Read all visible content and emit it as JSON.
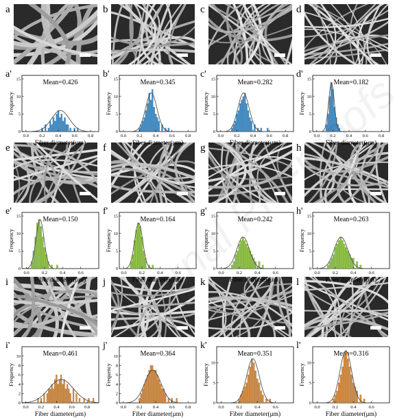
{
  "sem_panel_labels": [
    "a",
    "b",
    "c",
    "d",
    "e",
    "f",
    "g",
    "h",
    "i",
    "j",
    "k",
    "l"
  ],
  "histogram_panel_labels": [
    "a'",
    "b'",
    "c'",
    "d'",
    "e'",
    "f'",
    "g'",
    "h'",
    "i'",
    "j'",
    "k'",
    "l'"
  ],
  "watermark_text": "Journal Pre-proofs",
  "colors": {
    "row1_bars": "#3a8fd0",
    "row2_bars": "#8dc63f",
    "row3_bars": "#d98b3a",
    "fit_curve": "#404040",
    "sem_background": "#2a2a2a",
    "sem_fiber": "#c8c8c8",
    "scale_bar": "#ffffff"
  },
  "chart_data": [
    {
      "panel": "a'",
      "type": "bar",
      "title": "Mean=0.426",
      "xlabel": "Fiber diameter(μm)",
      "ylabel": "Frequency",
      "xlim": [
        -0.05,
        0.9
      ],
      "ylim": [
        0,
        16
      ],
      "xticks": [
        "0.0",
        "0.2",
        "0.4",
        "0.6",
        "0.8"
      ],
      "yticks": [
        "0",
        "5",
        "10",
        "15"
      ],
      "x": [
        0.2,
        0.24,
        0.28,
        0.3,
        0.32,
        0.34,
        0.36,
        0.38,
        0.4,
        0.42,
        0.44,
        0.46,
        0.48,
        0.5,
        0.52,
        0.55,
        0.6,
        0.64
      ],
      "values": [
        1,
        2,
        1,
        3,
        2,
        4,
        3,
        5,
        6,
        4,
        5,
        3,
        4,
        2,
        2,
        1,
        1,
        1
      ],
      "fit": {
        "mean": 0.426,
        "sd": 0.11,
        "peak": 6
      }
    },
    {
      "panel": "b'",
      "type": "bar",
      "title": "Mean=0.345",
      "xlabel": "Fiber diameter(μm)",
      "ylabel": "Frequency",
      "xlim": [
        -0.05,
        0.9
      ],
      "ylim": [
        0,
        16
      ],
      "xticks": [
        "0.0",
        "0.2",
        "0.4",
        "0.6",
        "0.8"
      ],
      "yticks": [
        "0",
        "5",
        "10",
        "15"
      ],
      "x": [
        0.2,
        0.22,
        0.24,
        0.26,
        0.28,
        0.3,
        0.32,
        0.34,
        0.36,
        0.38,
        0.4,
        0.42,
        0.44,
        0.48,
        0.52,
        0.56
      ],
      "values": [
        1,
        2,
        3,
        4,
        6,
        8,
        11,
        9,
        12,
        7,
        5,
        4,
        3,
        2,
        1,
        1
      ],
      "fit": {
        "mean": 0.345,
        "sd": 0.07,
        "peak": 11
      }
    },
    {
      "panel": "c'",
      "type": "bar",
      "title": "Mean=0.282",
      "xlabel": "Fiber diameter(μm)",
      "ylabel": "Frequency",
      "xlim": [
        -0.05,
        0.9
      ],
      "ylim": [
        0,
        16
      ],
      "xticks": [
        "0.0",
        "0.2",
        "0.4",
        "0.6",
        "0.8"
      ],
      "yticks": [
        "0",
        "5",
        "10",
        "15"
      ],
      "x": [
        0.14,
        0.16,
        0.18,
        0.2,
        0.22,
        0.24,
        0.26,
        0.28,
        0.3,
        0.32,
        0.34,
        0.36,
        0.38,
        0.42,
        0.46,
        0.5,
        0.58
      ],
      "values": [
        1,
        2,
        3,
        5,
        6,
        8,
        9,
        10,
        11,
        8,
        6,
        4,
        3,
        2,
        1,
        1,
        1
      ],
      "fit": {
        "mean": 0.282,
        "sd": 0.07,
        "peak": 11
      }
    },
    {
      "panel": "d'",
      "type": "bar",
      "title": "Mean=0.182",
      "xlabel": "Fiber diameter(μm)",
      "ylabel": "Frequency",
      "xlim": [
        -0.05,
        0.9
      ],
      "ylim": [
        0,
        16
      ],
      "xticks": [
        "0.0",
        "0.2",
        "0.4",
        "0.6",
        "0.8"
      ],
      "yticks": [
        "0",
        "5",
        "10",
        "15"
      ],
      "x": [
        0.12,
        0.14,
        0.16,
        0.18,
        0.2,
        0.22,
        0.24,
        0.26,
        0.28
      ],
      "values": [
        2,
        5,
        10,
        14,
        12,
        7,
        4,
        2,
        1
      ],
      "fit": {
        "mean": 0.182,
        "sd": 0.035,
        "peak": 14
      }
    },
    {
      "panel": "e'",
      "type": "bar",
      "title": "Mean=0.150",
      "xlabel": "Fiber diameter(μm)",
      "ylabel": "Frequency",
      "xlim": [
        -0.05,
        0.8
      ],
      "ylim": [
        0,
        16
      ],
      "xticks": [
        "0.0",
        "0.2",
        "0.4",
        "0.6"
      ],
      "yticks": [
        "0",
        "5",
        "10",
        "15"
      ],
      "x": [
        0.06,
        0.08,
        0.1,
        0.12,
        0.14,
        0.16,
        0.18,
        0.2,
        0.22,
        0.24,
        0.28,
        0.34
      ],
      "values": [
        2,
        5,
        9,
        13,
        14,
        12,
        9,
        6,
        4,
        2,
        1,
        1
      ],
      "fit": {
        "mean": 0.15,
        "sd": 0.045,
        "peak": 14
      }
    },
    {
      "panel": "f'",
      "type": "bar",
      "title": "Mean=0.164",
      "xlabel": "Fiber diameter(μm)",
      "ylabel": "Frequency",
      "xlim": [
        -0.05,
        0.8
      ],
      "ylim": [
        0,
        16
      ],
      "xticks": [
        "0.0",
        "0.2",
        "0.4",
        "0.6"
      ],
      "yticks": [
        "0",
        "5",
        "10",
        "15"
      ],
      "x": [
        0.08,
        0.1,
        0.12,
        0.14,
        0.16,
        0.18,
        0.2,
        0.22,
        0.24,
        0.28,
        0.32
      ],
      "values": [
        2,
        4,
        8,
        11,
        13,
        12,
        9,
        5,
        3,
        1,
        1
      ],
      "fit": {
        "mean": 0.164,
        "sd": 0.045,
        "peak": 13
      }
    },
    {
      "panel": "g'",
      "type": "bar",
      "title": "Mean=0.242",
      "xlabel": "Fiber diameter(μm)",
      "ylabel": "Frequency",
      "xlim": [
        -0.05,
        0.8
      ],
      "ylim": [
        0,
        16
      ],
      "xticks": [
        "0.0",
        "0.2",
        "0.4",
        "0.6"
      ],
      "yticks": [
        "0",
        "5",
        "10",
        "15"
      ],
      "x": [
        0.12,
        0.14,
        0.16,
        0.18,
        0.2,
        0.22,
        0.24,
        0.26,
        0.28,
        0.3,
        0.32,
        0.34,
        0.36,
        0.38,
        0.42,
        0.46
      ],
      "values": [
        1,
        2,
        4,
        5,
        7,
        8,
        9,
        8,
        7,
        6,
        5,
        4,
        3,
        2,
        2,
        1
      ],
      "fit": {
        "mean": 0.242,
        "sd": 0.07,
        "peak": 9
      }
    },
    {
      "panel": "h'",
      "type": "bar",
      "title": "Mean=0.263",
      "xlabel": "Fiber diameter(μm)",
      "ylabel": "Frequency",
      "xlim": [
        -0.05,
        0.8
      ],
      "ylim": [
        0,
        16
      ],
      "xticks": [
        "0.0",
        "0.2",
        "0.4",
        "0.6"
      ],
      "yticks": [
        "0",
        "5",
        "10",
        "15"
      ],
      "x": [
        0.12,
        0.14,
        0.16,
        0.18,
        0.2,
        0.22,
        0.24,
        0.26,
        0.28,
        0.3,
        0.32,
        0.34,
        0.36,
        0.38,
        0.4,
        0.44,
        0.48
      ],
      "values": [
        1,
        2,
        3,
        4,
        6,
        7,
        8,
        9,
        8,
        7,
        6,
        5,
        4,
        3,
        3,
        2,
        1
      ],
      "fit": {
        "mean": 0.263,
        "sd": 0.075,
        "peak": 9
      }
    },
    {
      "panel": "i'",
      "type": "bar",
      "title": "Mean=0.461",
      "xlabel": "Fiber diameter(μm)",
      "ylabel": "Frequency",
      "xlim": [
        -0.05,
        0.95
      ],
      "ylim": [
        0,
        12
      ],
      "xticks": [
        "0.0",
        "0.2",
        "0.4",
        "0.6",
        "0.8"
      ],
      "yticks": [
        "0",
        "2",
        "4",
        "6",
        "8",
        "10"
      ],
      "x": [
        0.16,
        0.2,
        0.24,
        0.28,
        0.3,
        0.32,
        0.34,
        0.36,
        0.38,
        0.4,
        0.42,
        0.44,
        0.46,
        0.48,
        0.5,
        0.52,
        0.54,
        0.56,
        0.58,
        0.62,
        0.66,
        0.7,
        0.76,
        0.82,
        0.88
      ],
      "values": [
        1,
        1,
        2,
        2,
        3,
        3,
        4,
        3,
        5,
        6,
        4,
        5,
        6,
        4,
        5,
        3,
        4,
        3,
        2,
        3,
        2,
        1,
        1,
        1,
        1
      ],
      "fit": {
        "mean": 0.461,
        "sd": 0.16,
        "peak": 5
      }
    },
    {
      "panel": "j'",
      "type": "bar",
      "title": "Mean=0.364",
      "xlabel": "Fiber diameter(μm)",
      "ylabel": "Frequency",
      "xlim": [
        -0.05,
        0.9
      ],
      "ylim": [
        0,
        12
      ],
      "xticks": [
        "0.0",
        "0.2",
        "0.4",
        "0.6",
        "0.8"
      ],
      "yticks": [
        "0",
        "2",
        "4",
        "6",
        "8",
        "10"
      ],
      "x": [
        0.2,
        0.22,
        0.24,
        0.26,
        0.28,
        0.3,
        0.32,
        0.34,
        0.36,
        0.38,
        0.4,
        0.42,
        0.44,
        0.46,
        0.48,
        0.5,
        0.52,
        0.56,
        0.6,
        0.66
      ],
      "values": [
        1,
        2,
        3,
        4,
        5,
        6,
        7,
        8,
        8,
        7,
        7,
        6,
        5,
        4,
        3,
        3,
        2,
        1,
        1,
        1
      ],
      "fit": {
        "mean": 0.364,
        "sd": 0.1,
        "peak": 7
      }
    },
    {
      "panel": "k'",
      "type": "bar",
      "title": "Mean=0.351",
      "xlabel": "Fiber diameter(μm)",
      "ylabel": "Frequency",
      "xlim": [
        -0.05,
        0.8
      ],
      "ylim": [
        0,
        14
      ],
      "xticks": [
        "0.0",
        "0.2",
        "0.4",
        "0.6"
      ],
      "yticks": [
        "0",
        "5",
        "10"
      ],
      "x": [
        0.2,
        0.22,
        0.24,
        0.26,
        0.28,
        0.3,
        0.32,
        0.34,
        0.36,
        0.38,
        0.4,
        0.42,
        0.44,
        0.46,
        0.5,
        0.54
      ],
      "values": [
        1,
        2,
        3,
        4,
        5,
        7,
        9,
        11,
        10,
        8,
        6,
        5,
        3,
        2,
        1,
        1
      ],
      "fit": {
        "mean": 0.351,
        "sd": 0.07,
        "peak": 11
      }
    },
    {
      "panel": "l'",
      "type": "bar",
      "title": "Mean=0.316",
      "xlabel": "Fiber diameter(μm)",
      "ylabel": "Frequency",
      "xlim": [
        -0.05,
        0.8
      ],
      "ylim": [
        0,
        14
      ],
      "xticks": [
        "0.0",
        "0.2",
        "0.4",
        "0.6"
      ],
      "yticks": [
        "0",
        "5",
        "10"
      ],
      "x": [
        0.18,
        0.2,
        0.22,
        0.24,
        0.26,
        0.28,
        0.3,
        0.32,
        0.34,
        0.36,
        0.38,
        0.4,
        0.42,
        0.44,
        0.48,
        0.52
      ],
      "values": [
        1,
        2,
        3,
        5,
        7,
        9,
        12,
        13,
        11,
        9,
        7,
        5,
        4,
        3,
        2,
        1
      ],
      "fit": {
        "mean": 0.316,
        "sd": 0.065,
        "peak": 13
      }
    }
  ]
}
